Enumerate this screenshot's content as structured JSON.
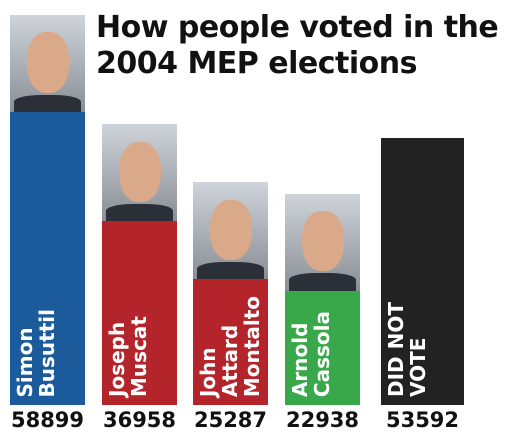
{
  "chart_data": {
    "type": "bar",
    "title": "How people voted in the 2004 MEP elections",
    "categories": [
      "Simon\nBusuttil",
      "Joseph\nMuscat",
      "John\nAttard\nMontalto",
      "Arnold\nCassola",
      "DID NOT\nVOTE"
    ],
    "values": [
      58899,
      36958,
      25287,
      22938,
      53592
    ],
    "colors": [
      "#1b5b9b",
      "#b4252b",
      "#b4252b",
      "#39a84a",
      "#222222"
    ]
  }
}
